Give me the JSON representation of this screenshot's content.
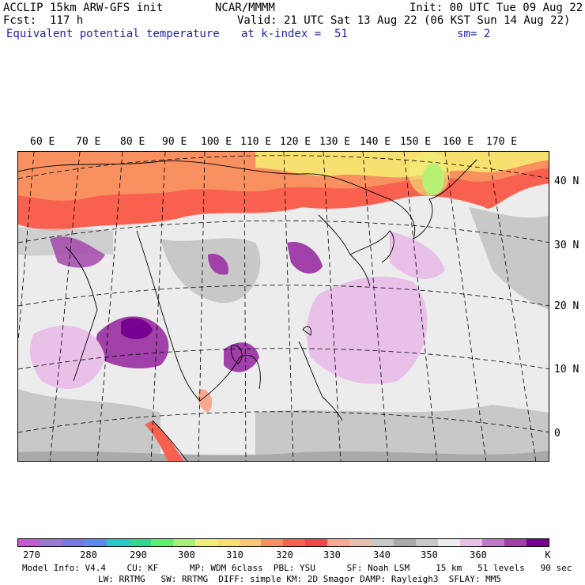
{
  "header": {
    "model": "ACCLIP 15km ARW-GFS init",
    "forecast": "Fcst:  117 h",
    "field": "Equivalent potential temperature",
    "center": "NCAR/MMMM",
    "init": "Init: 00 UTC Tue 09 Aug 22",
    "valid": "Valid: 21 UTC Sat 13 Aug 22 (06 KST Sun 14 Aug 22)",
    "level": "at k-index =  51",
    "smoothing": "sm= 2"
  },
  "longitude_labels": [
    "60 E",
    "70 E",
    "80 E",
    "90 E",
    "100 E",
    "110 E",
    "120 E",
    "130 E",
    "140 E",
    "150 E",
    "160 E",
    "170 E"
  ],
  "latitude_labels": [
    "40 N",
    "30 N",
    "20 N",
    "10 N",
    "0"
  ],
  "colorbar": {
    "colors": [
      "#c45ad0",
      "#9a78d0",
      "#7878e0",
      "#5a8cf0",
      "#28c8c8",
      "#30d890",
      "#60f070",
      "#a8f078",
      "#f0f078",
      "#f8e070",
      "#f8c878",
      "#f89060",
      "#f86050",
      "#f04848",
      "#f8a890",
      "#e8c0b0",
      "#c8c8c8",
      "#aaaaaa",
      "#c8c8c8",
      "#ececec",
      "#e8c0e8",
      "#c078c8",
      "#a040a8",
      "#780090"
    ],
    "ticks": [
      "270",
      "280",
      "290",
      "300",
      "310",
      "320",
      "330",
      "340",
      "350",
      "360",
      "K"
    ]
  },
  "footer": {
    "line1": "Model Info: V4.4    CU: KF      MP: WDM 6class  PBL: YSU      SF: Noah LSM     15 km   51 levels   90 sec",
    "line2": "LW: RRTMG   SW: RRTMG  DIFF: simple KM: 2D Smagor DAMP: Rayleigh3  SFLAY: MM5"
  }
}
